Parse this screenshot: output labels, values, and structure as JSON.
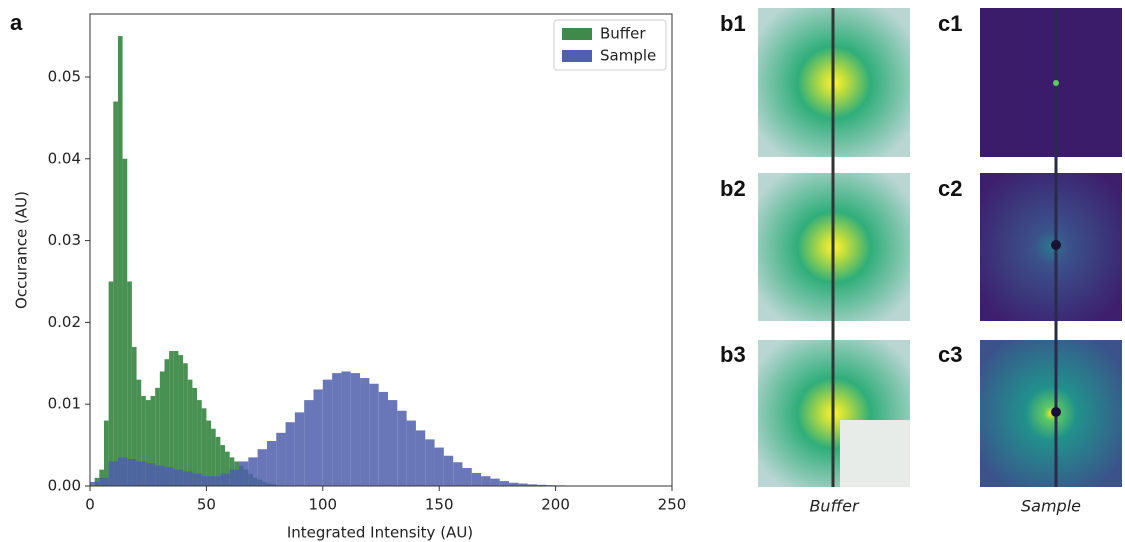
{
  "figure_label": "a",
  "chart_data": {
    "type": "histogram",
    "xlabel": "Integrated Intensity (AU)",
    "ylabel": "Occurance (AU)",
    "xlim": [
      0,
      250
    ],
    "xticks": [
      0,
      50,
      100,
      150,
      200,
      250
    ],
    "ylim": [
      0,
      0.0577
    ],
    "yticks": [
      {
        "value": 0,
        "label": "0.00"
      },
      {
        "value": 0.01,
        "label": "0.01"
      },
      {
        "value": 0.02,
        "label": "0.02"
      },
      {
        "value": 0.03,
        "label": "0.03"
      },
      {
        "value": 0.04,
        "label": "0.04"
      },
      {
        "value": 0.05,
        "label": "0.05"
      }
    ],
    "legend": "upper right",
    "series": [
      {
        "name": "Buffer",
        "color": "#3f8a4a",
        "bins": [
          0,
          2,
          4,
          6,
          8,
          10,
          12,
          14,
          16,
          18,
          20,
          22,
          24,
          26,
          28,
          30,
          32,
          34,
          36,
          38,
          40,
          42,
          44,
          46,
          48,
          50,
          52,
          54,
          56,
          58,
          60,
          62,
          64,
          66,
          68,
          70,
          72,
          74,
          76,
          78,
          80
        ],
        "values": [
          0,
          0.001,
          0.002,
          0.008,
          0.025,
          0.047,
          0.055,
          0.04,
          0.025,
          0.017,
          0.013,
          0.011,
          0.0105,
          0.011,
          0.012,
          0.014,
          0.0155,
          0.0165,
          0.0165,
          0.016,
          0.015,
          0.013,
          0.012,
          0.0105,
          0.0095,
          0.008,
          0.007,
          0.006,
          0.005,
          0.0042,
          0.0035,
          0.003,
          0.0025,
          0.002,
          0.0015,
          0.001,
          0.0008,
          0.0005,
          0.0003,
          0.0002
        ]
      },
      {
        "name": "Sample",
        "color": "#4f5fad",
        "bins": [
          0,
          4,
          8,
          12,
          16,
          20,
          24,
          28,
          32,
          36,
          40,
          44,
          48,
          52,
          56,
          60,
          64,
          68,
          72,
          76,
          80,
          84,
          88,
          92,
          96,
          100,
          104,
          108,
          112,
          116,
          120,
          124,
          128,
          132,
          136,
          140,
          144,
          148,
          152,
          156,
          160,
          164,
          168,
          172,
          176,
          180,
          184,
          188,
          192,
          196,
          200,
          204,
          208,
          212,
          216,
          220
        ],
        "values": [
          0.0005,
          0.001,
          0.003,
          0.0035,
          0.0033,
          0.003,
          0.0028,
          0.0025,
          0.0023,
          0.002,
          0.0018,
          0.0015,
          0.0012,
          0.0012,
          0.0015,
          0.002,
          0.003,
          0.0035,
          0.0045,
          0.0055,
          0.0065,
          0.0078,
          0.009,
          0.0105,
          0.0118,
          0.013,
          0.0138,
          0.014,
          0.0138,
          0.0132,
          0.0125,
          0.0115,
          0.0105,
          0.0092,
          0.008,
          0.0068,
          0.0057,
          0.0047,
          0.0037,
          0.0029,
          0.0022,
          0.0016,
          0.0012,
          0.0009,
          0.0006,
          0.0004,
          0.0003,
          0.0002,
          0.00015,
          0.0001,
          8e-05,
          5e-05,
          3e-05,
          2e-05,
          1e-05
        ]
      }
    ]
  },
  "panels": {
    "b": [
      "b1",
      "b2",
      "b3"
    ],
    "c": [
      "c1",
      "c2",
      "c3"
    ],
    "b_caption": "Buffer",
    "c_caption": "Sample"
  }
}
